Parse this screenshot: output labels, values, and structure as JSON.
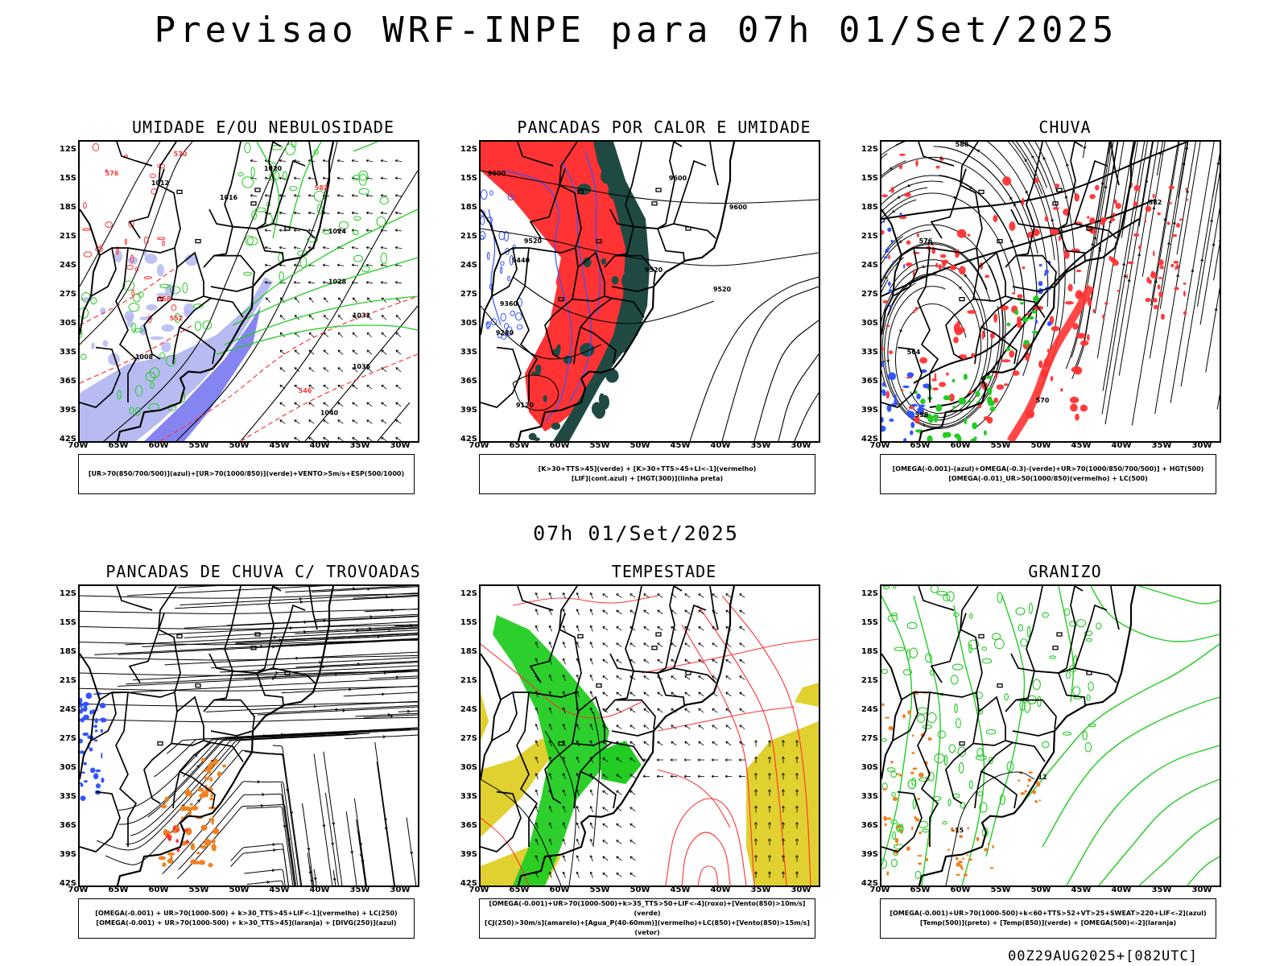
{
  "header": {
    "title": "Previsao WRF-INPE  para 07h 01/Set/2025",
    "mid_date": "07h 01/Set/2025",
    "run_info": "00Z29AUG2025+[082UTC]"
  },
  "axes": {
    "lat_labels": [
      "12S",
      "15S",
      "18S",
      "21S",
      "24S",
      "27S",
      "30S",
      "33S",
      "36S",
      "39S",
      "42S"
    ],
    "lon_labels": [
      "70W",
      "65W",
      "60W",
      "55W",
      "50W",
      "45W",
      "40W",
      "35W",
      "30W"
    ]
  },
  "colors": {
    "red": "#ff3333",
    "green": "#22cc22",
    "blue": "#3355ff",
    "dark_teal": "#1f4a44",
    "yellow": "#e0d030",
    "orange": "#f08020",
    "lavender": "#b0b4f0"
  },
  "panels": [
    {
      "title": "UMIDADE E/OU NEBULOSIDADE",
      "legend": [
        "[UR>70(850/700/500)](azul)+[UR>70(1000/850)](verde)+VENTO>5m/s+ESP(500/1000)"
      ],
      "contour_labels": [
        "1012",
        "1016",
        "1020",
        "1024",
        "1028",
        "1032",
        "1036",
        "1040",
        "1008",
        "546",
        "552",
        "558",
        "570",
        "576",
        "582"
      ]
    },
    {
      "title": "PANCADAS POR CALOR E UMIDADE",
      "legend": [
        "[K>30+TTS>45](verde) + [K>30+TTS>45+LI<-1](vermelho)",
        "[LIF](cont.azul) + [HGT(300)](linha preta)"
      ],
      "contour_labels": [
        "9600",
        "9520",
        "9440",
        "9360",
        "9280",
        "9120"
      ]
    },
    {
      "title": "CHUVA",
      "legend": [
        "[OMEGA(-0.001)-(azul)+OMEGA(-0.3)-(verde)+UR>70(1000/850/700/500)] + HGT(500)",
        "[OMEGA(-0.01)_UR>50(1000/850)(vermelho) + LC(500)"
      ],
      "contour_labels": [
        "588",
        "582",
        "576",
        "570",
        "564",
        "558"
      ]
    },
    {
      "title": "PANCADAS DE CHUVA C/ TROVOADAS",
      "legend": [
        "[OMEGA(-0.001) + UR>70(1000-500) + k>30_TTS>45+LIF<-1](vermelho) + LC(250)",
        "[OMEGA(-0.001) + UR>70(1000-500) + k>30_TTS>45](laranja) + [DIVG(250)](azul)"
      ],
      "contour_labels": []
    },
    {
      "title": "TEMPESTADE",
      "legend": [
        "[OMEGA(-0.001)+UR>70(1000-500)+k>35_TTS>50+LIF<-4](roxo)+[Vento(850)>10m/s](verde)",
        "[CJ(250)>30m/s](amarelo)+[Agua_P(40-60mm)](vermelho)+LC(850)+[Vento(850)>15m/s](vetor)"
      ],
      "contour_labels": []
    },
    {
      "title": "GRANIZO",
      "legend": [
        "[OMEGA(-0.001)+UR>70(1000-500)+k<60+TTS>52+VT>25+SWEAT>220+LIF<-2](azul)",
        "[Temp(500)](preto) + [Temp(850)](verde) + [OMEGA(500)<-2](laranja)"
      ],
      "contour_labels": [
        "-15",
        "12"
      ]
    }
  ]
}
